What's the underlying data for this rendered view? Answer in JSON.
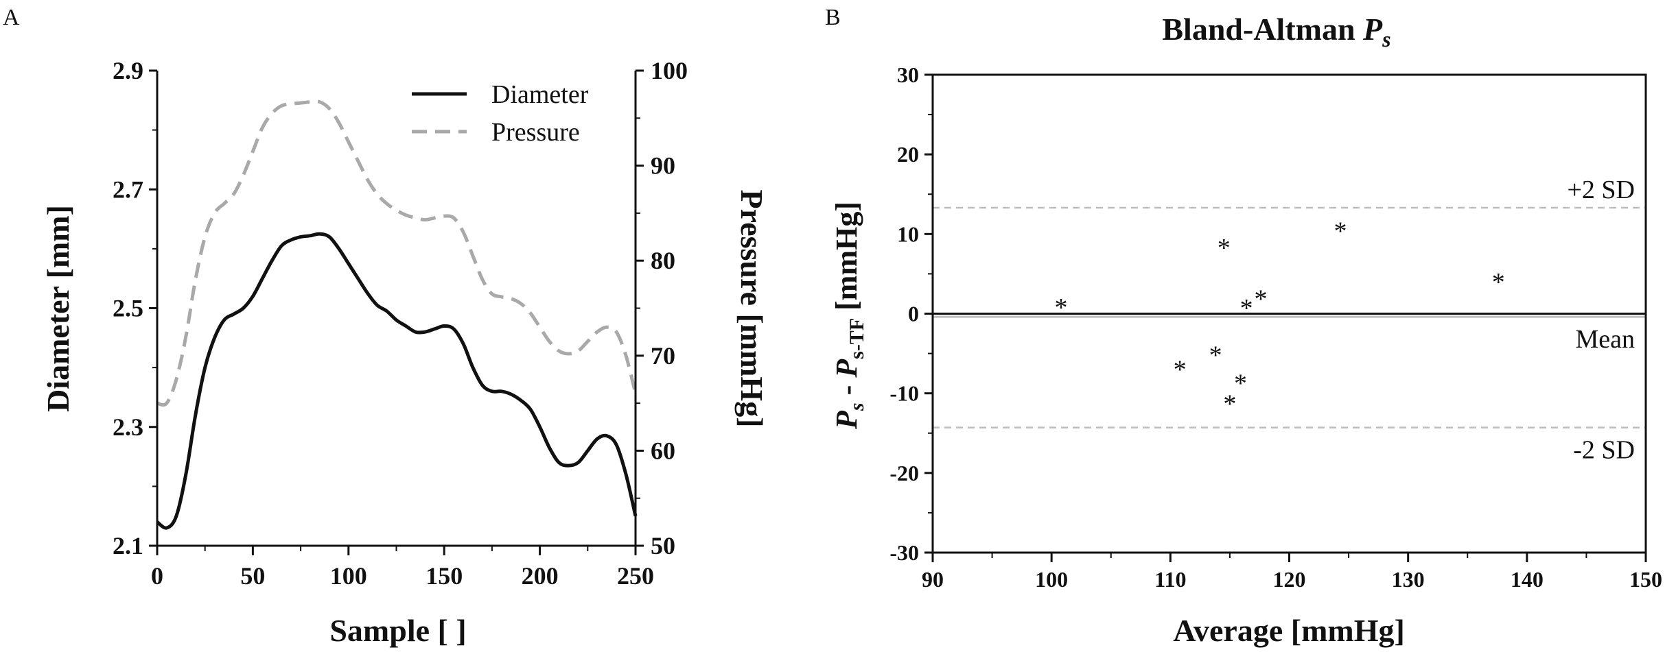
{
  "chart_data": [
    {
      "panel_label": "A",
      "type": "line",
      "title": "",
      "xlabel": "Sample [ ]",
      "ylabel": "Diameter [mm]",
      "y2label": "Pressure [mmHg]",
      "xlim": [
        0,
        250
      ],
      "ylim": [
        2.1,
        2.9
      ],
      "y2lim": [
        50,
        100
      ],
      "xticks": [
        "0",
        "50",
        "100",
        "150",
        "200",
        "250"
      ],
      "yticks": [
        "2.1",
        "2.3",
        "2.5",
        "2.7",
        "2.9"
      ],
      "y2ticks": [
        "50",
        "60",
        "70",
        "80",
        "90",
        "100"
      ],
      "legend_position": "top-right",
      "series": [
        {
          "name": "Diameter",
          "axis": "left",
          "color": "#111111",
          "style": "solid",
          "x": [
            0,
            5,
            10,
            15,
            20,
            25,
            30,
            35,
            40,
            45,
            50,
            55,
            60,
            65,
            70,
            75,
            80,
            85,
            90,
            95,
            100,
            105,
            110,
            115,
            120,
            125,
            130,
            135,
            140,
            145,
            150,
            155,
            160,
            165,
            170,
            175,
            180,
            185,
            190,
            195,
            200,
            205,
            210,
            215,
            220,
            225,
            230,
            235,
            240,
            245,
            250
          ],
          "values": [
            2.14,
            2.13,
            2.15,
            2.22,
            2.32,
            2.4,
            2.45,
            2.48,
            2.49,
            2.5,
            2.52,
            2.55,
            2.58,
            2.605,
            2.615,
            2.62,
            2.622,
            2.625,
            2.62,
            2.6,
            2.575,
            2.55,
            2.525,
            2.505,
            2.495,
            2.48,
            2.47,
            2.46,
            2.46,
            2.465,
            2.47,
            2.465,
            2.44,
            2.4,
            2.37,
            2.36,
            2.36,
            2.355,
            2.345,
            2.33,
            2.3,
            2.265,
            2.24,
            2.235,
            2.24,
            2.26,
            2.28,
            2.285,
            2.27,
            2.22,
            2.15
          ]
        },
        {
          "name": "Pressure",
          "axis": "right",
          "color": "#a9a9a9",
          "style": "dashed",
          "x": [
            0,
            5,
            10,
            15,
            20,
            25,
            30,
            35,
            40,
            45,
            50,
            55,
            60,
            65,
            70,
            75,
            80,
            85,
            90,
            95,
            100,
            105,
            110,
            115,
            120,
            125,
            130,
            135,
            140,
            145,
            150,
            155,
            160,
            165,
            170,
            175,
            180,
            185,
            190,
            195,
            200,
            205,
            210,
            215,
            220,
            225,
            230,
            235,
            240,
            245,
            250
          ],
          "values": [
            65,
            65,
            67.5,
            72,
            78,
            82.5,
            85,
            86,
            87,
            89,
            91.5,
            94,
            95.5,
            96.3,
            96.5,
            96.6,
            96.7,
            96.7,
            96,
            94.5,
            92.5,
            90.5,
            88.5,
            87,
            86,
            85.3,
            84.8,
            84.5,
            84.3,
            84.5,
            84.7,
            84.5,
            83,
            80.5,
            78,
            76.5,
            76.2,
            76,
            75.5,
            74.5,
            73,
            71.5,
            70.5,
            70.2,
            70.5,
            71.5,
            72.5,
            73,
            72.5,
            70,
            66
          ]
        }
      ]
    },
    {
      "panel_label": "B",
      "type": "scatter",
      "title_main": "Bland-Altman ",
      "title_var": "P",
      "title_sub": "s",
      "xlabel": "Average [mmHg]",
      "ylabel_p1": "P",
      "ylabel_s1": "s",
      "ylabel_mid": " - ",
      "ylabel_p2": "P",
      "ylabel_s2": "s-TF",
      "ylabel_units": " [mmHg]",
      "xlim": [
        90,
        150
      ],
      "ylim": [
        -30,
        30
      ],
      "xticks": [
        "90",
        "100",
        "110",
        "120",
        "130",
        "140",
        "150"
      ],
      "yticks": [
        "-30",
        "-20",
        "-10",
        "0",
        "10",
        "20",
        "30"
      ],
      "marker": "*",
      "points": [
        {
          "x": 100.8,
          "y": 0.9
        },
        {
          "x": 110.8,
          "y": -6.9
        },
        {
          "x": 113.8,
          "y": -5.1
        },
        {
          "x": 114.5,
          "y": 8.4
        },
        {
          "x": 115.0,
          "y": -11.2
        },
        {
          "x": 115.9,
          "y": -8.6
        },
        {
          "x": 116.4,
          "y": 0.8
        },
        {
          "x": 117.6,
          "y": 2.0
        },
        {
          "x": 124.3,
          "y": 10.5
        },
        {
          "x": 137.6,
          "y": 4.1
        }
      ],
      "mean_line": {
        "value": -0.4,
        "label": "Mean"
      },
      "upper_sd_line": {
        "value": 13.3,
        "label": "+2 SD"
      },
      "lower_sd_line": {
        "value": -14.3,
        "label": "-2 SD"
      }
    }
  ]
}
